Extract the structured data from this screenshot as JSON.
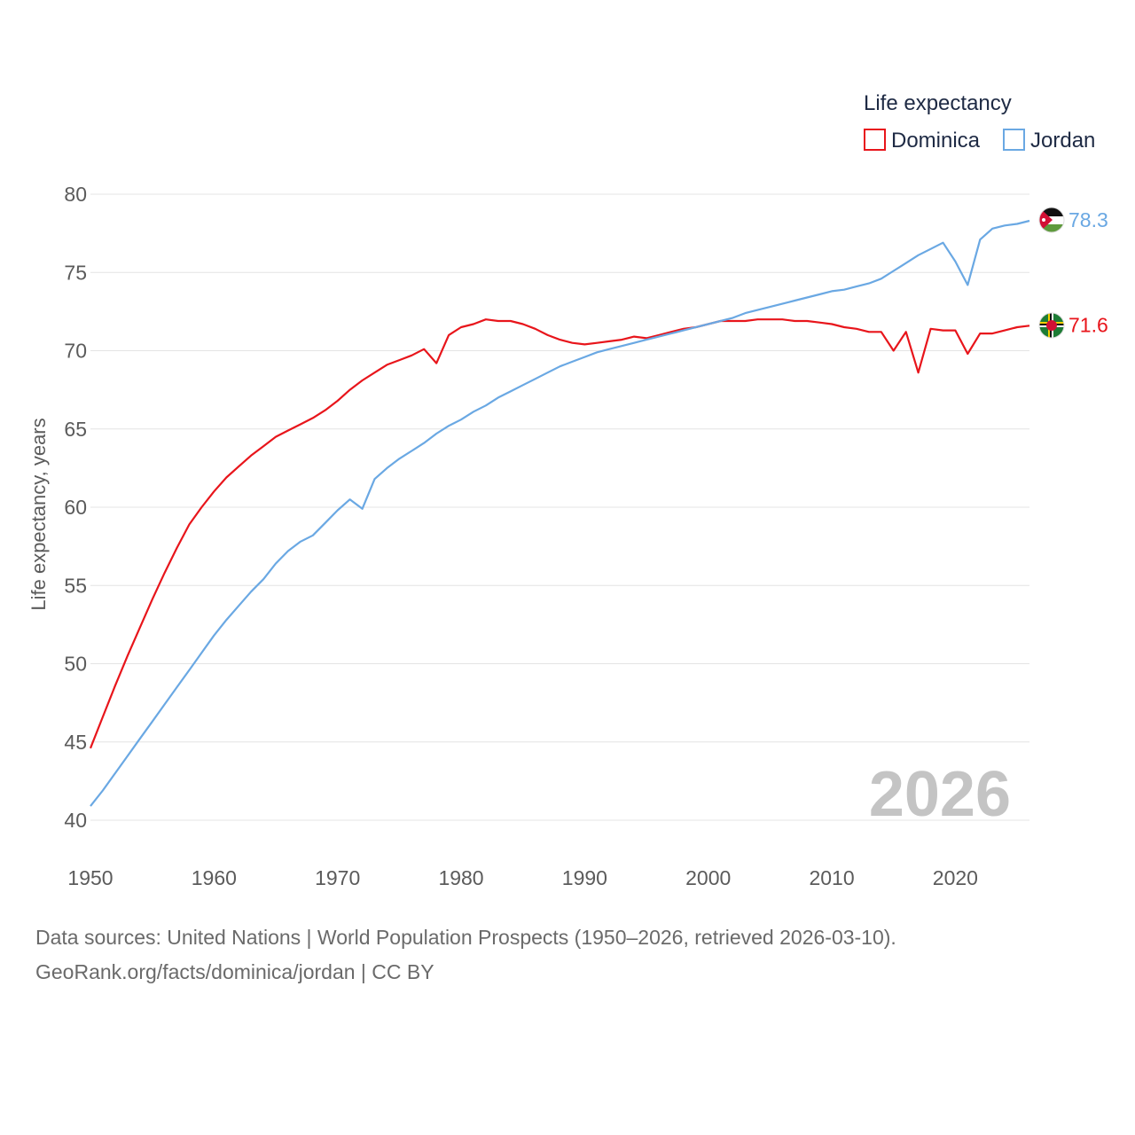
{
  "chart_data": {
    "type": "line",
    "title": "",
    "xlabel": "",
    "ylabel": "Life expectancy, years",
    "xlim": [
      1950,
      2026
    ],
    "ylim": [
      40,
      80
    ],
    "x_ticks": [
      "1950",
      "1960",
      "1970",
      "1980",
      "1990",
      "2000",
      "2010",
      "2020"
    ],
    "y_ticks": [
      "40",
      "45",
      "50",
      "55",
      "60",
      "65",
      "70",
      "75",
      "80"
    ],
    "grid": true,
    "legend": {
      "title": "Life expectancy",
      "position": "top-right"
    },
    "watermark_year": "2026",
    "x": [
      1950,
      1951,
      1952,
      1953,
      1954,
      1955,
      1956,
      1957,
      1958,
      1959,
      1960,
      1961,
      1962,
      1963,
      1964,
      1965,
      1966,
      1967,
      1968,
      1969,
      1970,
      1971,
      1972,
      1973,
      1974,
      1975,
      1976,
      1977,
      1978,
      1979,
      1980,
      1981,
      1982,
      1983,
      1984,
      1985,
      1986,
      1987,
      1988,
      1989,
      1990,
      1991,
      1992,
      1993,
      1994,
      1995,
      1996,
      1997,
      1998,
      1999,
      2000,
      2001,
      2002,
      2003,
      2004,
      2005,
      2006,
      2007,
      2008,
      2009,
      2010,
      2011,
      2012,
      2013,
      2014,
      2015,
      2016,
      2017,
      2018,
      2019,
      2020,
      2021,
      2022,
      2023,
      2024,
      2025,
      2026
    ],
    "series": [
      {
        "name": "Dominica",
        "color": "#e8151b",
        "end_label": "71.6",
        "flag": "dominica-flag",
        "values": [
          44.6,
          46.6,
          48.6,
          50.5,
          52.3,
          54.1,
          55.8,
          57.4,
          58.9,
          60.0,
          61.0,
          61.9,
          62.6,
          63.3,
          63.9,
          64.5,
          64.9,
          65.3,
          65.7,
          66.2,
          66.8,
          67.5,
          68.1,
          68.6,
          69.1,
          69.4,
          69.7,
          70.1,
          69.2,
          71.0,
          71.5,
          71.7,
          72.0,
          71.9,
          71.9,
          71.7,
          71.4,
          71.0,
          70.7,
          70.5,
          70.4,
          70.5,
          70.6,
          70.7,
          70.9,
          70.8,
          71.0,
          71.2,
          71.4,
          71.5,
          71.7,
          71.9,
          71.9,
          71.9,
          72.0,
          72.0,
          72.0,
          71.9,
          71.9,
          71.8,
          71.7,
          71.5,
          71.4,
          71.2,
          71.2,
          70.0,
          71.2,
          68.6,
          71.4,
          71.3,
          71.3,
          69.8,
          71.1,
          71.1,
          71.3,
          71.5,
          71.6
        ]
      },
      {
        "name": "Jordan",
        "color": "#6aa8e3",
        "end_label": "78.3",
        "flag": "jordan-flag",
        "values": [
          40.9,
          41.9,
          43.0,
          44.1,
          45.2,
          46.3,
          47.4,
          48.5,
          49.6,
          50.7,
          51.8,
          52.8,
          53.7,
          54.6,
          55.4,
          56.4,
          57.2,
          57.8,
          58.2,
          59.0,
          59.8,
          60.5,
          59.9,
          61.8,
          62.5,
          63.1,
          63.6,
          64.1,
          64.7,
          65.2,
          65.6,
          66.1,
          66.5,
          67.0,
          67.4,
          67.8,
          68.2,
          68.6,
          69.0,
          69.3,
          69.6,
          69.9,
          70.1,
          70.3,
          70.5,
          70.7,
          70.9,
          71.1,
          71.3,
          71.5,
          71.7,
          71.9,
          72.1,
          72.4,
          72.6,
          72.8,
          73.0,
          73.2,
          73.4,
          73.6,
          73.8,
          73.9,
          74.1,
          74.3,
          74.6,
          75.1,
          75.6,
          76.1,
          76.5,
          76.9,
          75.7,
          74.2,
          77.1,
          77.8,
          78.0,
          78.1,
          78.3
        ]
      }
    ]
  },
  "footer": {
    "source_line": "Data sources: United Nations | World Population Prospects (1950–2026, retrieved 2026-03-10).",
    "credit_line": "GeoRank.org/facts/dominica/jordan | CC BY"
  }
}
